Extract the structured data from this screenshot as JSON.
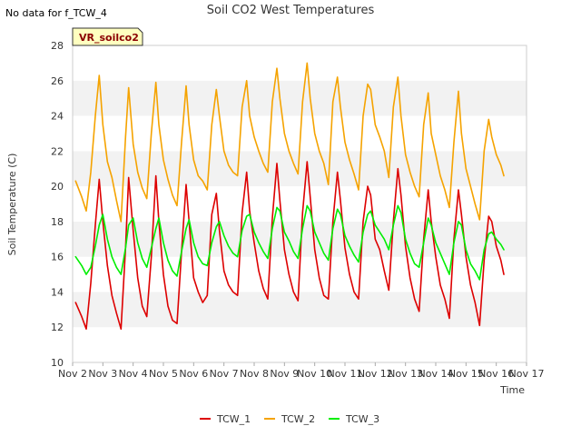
{
  "no_data_note": "No data for f_TCW_4",
  "site_tag": "VR_soilco2",
  "chart_data": {
    "type": "line",
    "title": "Soil CO2 West Temperatures",
    "xlabel": "Time",
    "ylabel": "Soil Temperature (C)",
    "ylim": [
      10,
      28
    ],
    "yticks": [
      10,
      12,
      14,
      16,
      18,
      20,
      22,
      24,
      26,
      28
    ],
    "xlim": [
      2,
      17
    ],
    "xticks": [
      2,
      3,
      4,
      5,
      6,
      7,
      8,
      9,
      10,
      11,
      12,
      13,
      14,
      15,
      16,
      17
    ],
    "xtick_labels": [
      "Nov 2",
      "Nov 3",
      "Nov 4",
      "Nov 5",
      "Nov 6",
      "Nov 7",
      "Nov 8",
      "Nov 9",
      "Nov 10",
      "Nov 11",
      "Nov 12",
      "Nov 13",
      "Nov 14",
      "Nov 15",
      "Nov 16",
      "Nov 17"
    ],
    "grid": "horizontal bands",
    "legend_position": "bottom",
    "series": [
      {
        "name": "TCW_1",
        "color": "#dd0000",
        "x": [
          2.1,
          2.3,
          2.45,
          2.6,
          2.75,
          2.88,
          3.0,
          3.15,
          3.3,
          3.45,
          3.6,
          3.75,
          3.85,
          4.0,
          4.15,
          4.3,
          4.45,
          4.6,
          4.75,
          4.85,
          5.0,
          5.15,
          5.3,
          5.45,
          5.6,
          5.75,
          5.85,
          6.0,
          6.15,
          6.3,
          6.45,
          6.6,
          6.75,
          6.85,
          7.0,
          7.15,
          7.3,
          7.45,
          7.6,
          7.75,
          7.85,
          8.0,
          8.15,
          8.3,
          8.45,
          8.6,
          8.75,
          8.85,
          9.0,
          9.15,
          9.3,
          9.45,
          9.6,
          9.75,
          9.85,
          10.0,
          10.15,
          10.3,
          10.45,
          10.6,
          10.75,
          10.85,
          11.0,
          11.15,
          11.3,
          11.45,
          11.6,
          11.75,
          11.85,
          12.0,
          12.15,
          12.3,
          12.45,
          12.6,
          12.75,
          12.85,
          13.0,
          13.15,
          13.3,
          13.45,
          13.6,
          13.75,
          13.85,
          14.0,
          14.15,
          14.3,
          14.45,
          14.6,
          14.75,
          14.85,
          15.0,
          15.15,
          15.3,
          15.45,
          15.6,
          15.75,
          15.85,
          16.0,
          16.15,
          16.25
        ],
        "values": [
          13.4,
          12.6,
          11.9,
          14.5,
          17.8,
          20.4,
          18.0,
          15.5,
          13.8,
          12.8,
          11.9,
          16.5,
          20.5,
          17.5,
          14.8,
          13.2,
          12.6,
          16.0,
          20.6,
          18.0,
          15.0,
          13.2,
          12.4,
          12.2,
          16.3,
          20.1,
          18.0,
          14.8,
          14.0,
          13.4,
          13.8,
          18.4,
          19.6,
          17.5,
          15.2,
          14.4,
          14.0,
          13.8,
          18.5,
          20.8,
          18.6,
          16.8,
          15.2,
          14.2,
          13.6,
          18.2,
          21.3,
          19.2,
          16.4,
          15.0,
          14.0,
          13.5,
          18.5,
          21.4,
          19.4,
          16.4,
          14.8,
          13.8,
          13.6,
          18.0,
          20.8,
          19.2,
          16.5,
          15.0,
          14.0,
          13.6,
          18.0,
          20.0,
          19.5,
          17.0,
          16.4,
          15.2,
          14.1,
          18.0,
          21.0,
          19.5,
          16.6,
          14.8,
          13.6,
          12.9,
          17.0,
          19.8,
          18.0,
          16.0,
          14.4,
          13.6,
          12.5,
          17.0,
          19.8,
          18.4,
          16.0,
          14.4,
          13.4,
          12.1,
          15.8,
          18.3,
          18.0,
          16.6,
          15.8,
          15.0
        ]
      },
      {
        "name": "TCW_2",
        "color": "#f5a300",
        "x": [
          2.1,
          2.3,
          2.45,
          2.6,
          2.75,
          2.88,
          3.0,
          3.15,
          3.3,
          3.45,
          3.6,
          3.75,
          3.85,
          4.0,
          4.15,
          4.3,
          4.45,
          4.6,
          4.75,
          4.85,
          5.0,
          5.15,
          5.3,
          5.45,
          5.6,
          5.75,
          5.85,
          6.0,
          6.15,
          6.3,
          6.45,
          6.6,
          6.75,
          6.85,
          7.0,
          7.15,
          7.3,
          7.45,
          7.6,
          7.75,
          7.85,
          8.0,
          8.15,
          8.3,
          8.45,
          8.6,
          8.75,
          8.85,
          9.0,
          9.15,
          9.3,
          9.45,
          9.6,
          9.75,
          9.85,
          10.0,
          10.15,
          10.3,
          10.45,
          10.6,
          10.75,
          10.85,
          11.0,
          11.15,
          11.3,
          11.45,
          11.6,
          11.75,
          11.85,
          12.0,
          12.15,
          12.3,
          12.45,
          12.6,
          12.75,
          12.85,
          13.0,
          13.15,
          13.3,
          13.45,
          13.6,
          13.75,
          13.85,
          14.0,
          14.15,
          14.3,
          14.45,
          14.6,
          14.75,
          14.85,
          15.0,
          15.15,
          15.3,
          15.45,
          15.6,
          15.75,
          15.85,
          16.0,
          16.15,
          16.25
        ],
        "values": [
          20.3,
          19.4,
          18.6,
          20.8,
          24.0,
          26.3,
          23.5,
          21.4,
          20.5,
          19.2,
          18.0,
          22.8,
          25.6,
          22.4,
          20.8,
          19.9,
          19.3,
          23.0,
          25.9,
          23.5,
          21.5,
          20.4,
          19.5,
          18.9,
          22.5,
          25.7,
          23.5,
          21.5,
          20.6,
          20.3,
          19.8,
          23.5,
          25.5,
          24.0,
          22.0,
          21.2,
          20.8,
          20.6,
          24.5,
          26.0,
          24.0,
          22.8,
          22.0,
          21.3,
          20.8,
          24.8,
          26.7,
          25.0,
          23.0,
          22.0,
          21.3,
          20.7,
          24.8,
          27.0,
          25.0,
          23.0,
          22.0,
          21.3,
          20.1,
          24.8,
          26.2,
          24.5,
          22.5,
          21.5,
          20.7,
          19.8,
          24.0,
          25.8,
          25.5,
          23.5,
          22.8,
          22.0,
          20.5,
          24.5,
          26.2,
          24.0,
          21.8,
          20.8,
          20.0,
          19.4,
          23.5,
          25.3,
          23.0,
          21.8,
          20.6,
          19.8,
          18.8,
          22.5,
          25.4,
          23.0,
          21.0,
          20.0,
          19.0,
          18.1,
          22.0,
          23.8,
          22.8,
          21.8,
          21.2,
          20.6
        ]
      },
      {
        "name": "TCW_3",
        "color": "#00ee00",
        "x": [
          2.1,
          2.3,
          2.45,
          2.6,
          2.75,
          2.88,
          3.0,
          3.15,
          3.3,
          3.45,
          3.6,
          3.75,
          3.85,
          4.0,
          4.15,
          4.3,
          4.45,
          4.6,
          4.75,
          4.85,
          5.0,
          5.15,
          5.3,
          5.45,
          5.6,
          5.75,
          5.85,
          6.0,
          6.15,
          6.3,
          6.45,
          6.6,
          6.75,
          6.85,
          7.0,
          7.15,
          7.3,
          7.45,
          7.6,
          7.75,
          7.85,
          8.0,
          8.15,
          8.3,
          8.45,
          8.6,
          8.75,
          8.85,
          9.0,
          9.15,
          9.3,
          9.45,
          9.6,
          9.75,
          9.85,
          10.0,
          10.15,
          10.3,
          10.45,
          10.6,
          10.75,
          10.85,
          11.0,
          11.15,
          11.3,
          11.45,
          11.6,
          11.75,
          11.85,
          12.0,
          12.15,
          12.3,
          12.45,
          12.6,
          12.75,
          12.85,
          13.0,
          13.15,
          13.3,
          13.45,
          13.6,
          13.75,
          13.85,
          14.0,
          14.15,
          14.3,
          14.45,
          14.6,
          14.75,
          14.85,
          15.0,
          15.15,
          15.3,
          15.45,
          15.6,
          15.75,
          15.85,
          16.0,
          16.15,
          16.25
        ],
        "values": [
          16.0,
          15.5,
          15.0,
          15.4,
          16.6,
          17.8,
          18.4,
          17.0,
          16.0,
          15.4,
          15.0,
          16.5,
          17.8,
          18.2,
          16.8,
          15.9,
          15.4,
          16.5,
          17.6,
          18.2,
          16.8,
          15.8,
          15.2,
          14.9,
          16.3,
          17.6,
          18.1,
          16.8,
          16.0,
          15.6,
          15.5,
          16.8,
          17.7,
          18.0,
          17.2,
          16.6,
          16.2,
          16.0,
          17.5,
          18.3,
          18.4,
          17.4,
          16.8,
          16.3,
          15.9,
          17.6,
          18.8,
          18.6,
          17.4,
          16.9,
          16.3,
          15.9,
          17.6,
          18.9,
          18.6,
          17.4,
          16.8,
          16.2,
          15.8,
          17.6,
          18.7,
          18.4,
          17.2,
          16.6,
          16.1,
          15.7,
          17.4,
          18.4,
          18.6,
          17.8,
          17.4,
          17.0,
          16.4,
          17.8,
          18.9,
          18.5,
          17.0,
          16.2,
          15.6,
          15.4,
          16.8,
          18.2,
          17.8,
          16.8,
          16.2,
          15.6,
          15.0,
          16.8,
          18.0,
          17.8,
          16.4,
          15.6,
          15.2,
          14.7,
          16.4,
          17.3,
          17.4,
          17.0,
          16.7,
          16.4
        ]
      }
    ]
  }
}
